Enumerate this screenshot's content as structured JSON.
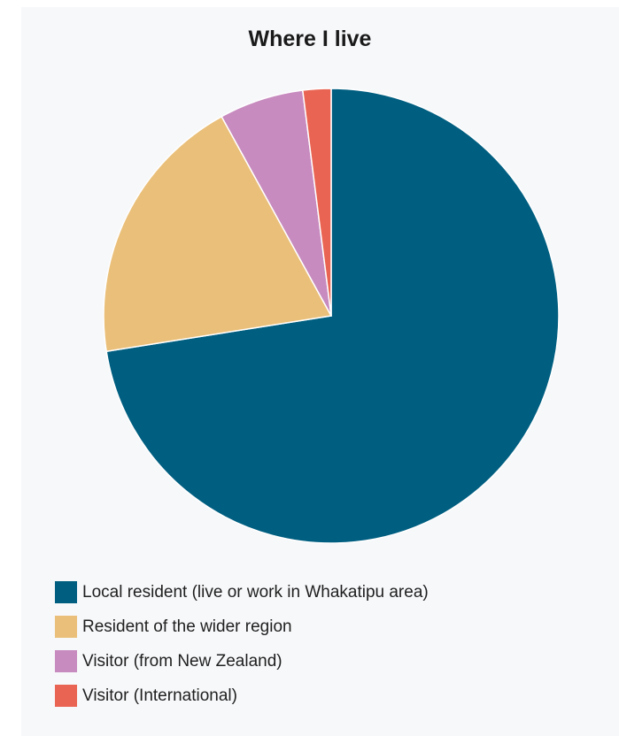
{
  "chart_data": {
    "type": "pie",
    "title": "Where I live",
    "start_angle_deg": 0,
    "direction": "clockwise",
    "legend_position": "bottom-left",
    "slices": [
      {
        "label": "Local resident (live or work in Whakatipu area)",
        "value": 72.5,
        "color": "#005e80"
      },
      {
        "label": "Resident of the wider region",
        "value": 19.5,
        "color": "#eabf79"
      },
      {
        "label": "Visitor (from New Zealand)",
        "value": 6.0,
        "color": "#c78bbf"
      },
      {
        "label": "Visitor (International)",
        "value": 2.0,
        "color": "#e96452"
      }
    ]
  }
}
